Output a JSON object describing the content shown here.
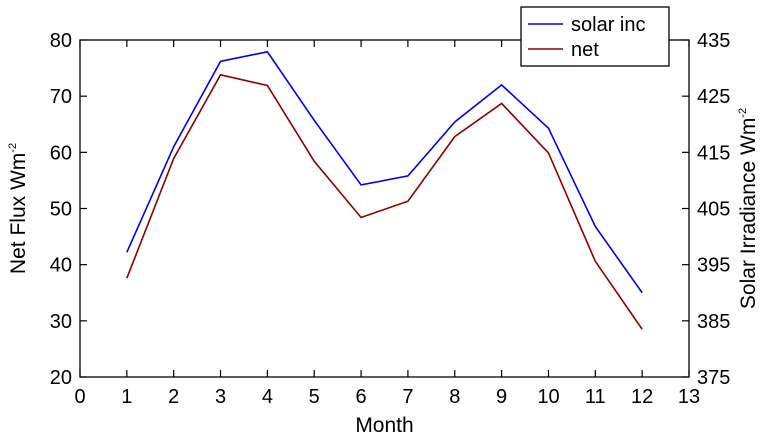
{
  "chart_data": {
    "type": "line",
    "xlabel": "Month",
    "ylabel_left": "Net Flux Wm",
    "ylabel_left_sup": "-2",
    "ylabel_right": "Solar Irradiance Wm",
    "ylabel_right_sup": "-2",
    "xlim": [
      0,
      13
    ],
    "ylim_left": [
      20,
      80
    ],
    "ylim_right": [
      375,
      435
    ],
    "x_ticks": [
      "0",
      "1",
      "2",
      "3",
      "4",
      "5",
      "6",
      "7",
      "8",
      "9",
      "10",
      "11",
      "12",
      "13"
    ],
    "y_left_ticks": [
      "20",
      "30",
      "40",
      "50",
      "60",
      "70",
      "80"
    ],
    "y_right_ticks": [
      "375",
      "385",
      "395",
      "405",
      "415",
      "425",
      "435"
    ],
    "grid": false,
    "legend_position": "top-right",
    "x": [
      1,
      2,
      3,
      4,
      5,
      6,
      7,
      8,
      9,
      10,
      11,
      12
    ],
    "series": [
      {
        "name": "solar inc",
        "axis": "right",
        "color": "#0000e6",
        "values": [
          397.2,
          416.0,
          431.2,
          432.9,
          420.7,
          409.2,
          410.8,
          420.4,
          427.0,
          419.3,
          401.8,
          390.0
        ]
      },
      {
        "name": "net",
        "axis": "left",
        "color": "#8b0000",
        "values": [
          37.6,
          58.9,
          73.8,
          71.9,
          58.4,
          48.4,
          51.3,
          62.8,
          68.7,
          59.9,
          40.6,
          28.5
        ]
      }
    ]
  }
}
